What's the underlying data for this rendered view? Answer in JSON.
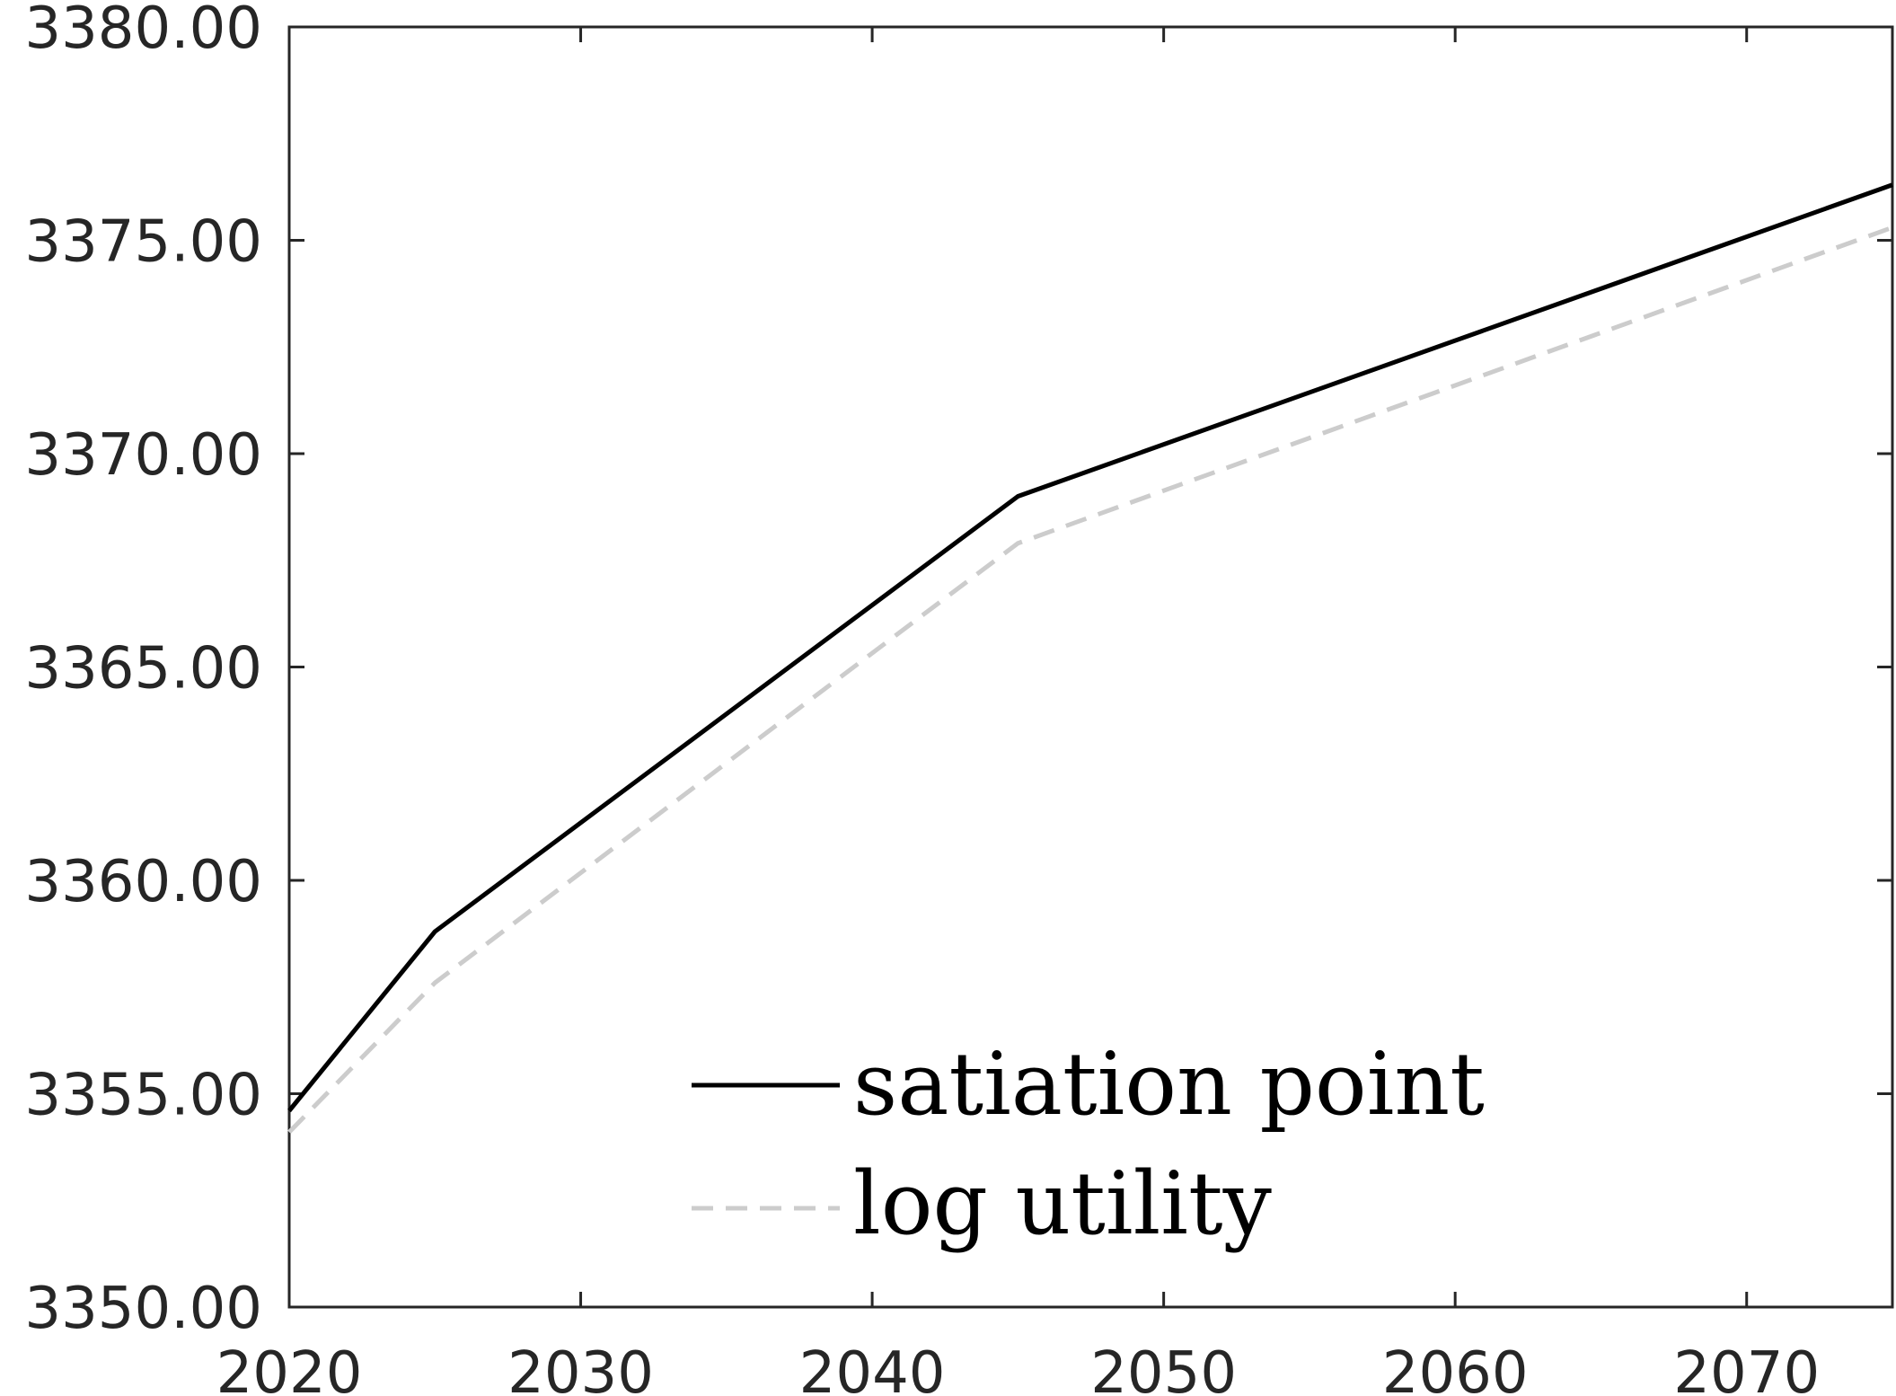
{
  "chart_data": {
    "type": "line",
    "x": [
      2020,
      2025,
      2045,
      2075
    ],
    "xlim": [
      2020,
      2075
    ],
    "ylim": [
      3350,
      3380
    ],
    "xticks": [
      "2020",
      "2030",
      "2040",
      "2050",
      "2060",
      "2070"
    ],
    "yticks": [
      "3350.00",
      "3355.00",
      "3360.00",
      "3365.00",
      "3370.00",
      "3375.00",
      "3380.00"
    ],
    "grid": false,
    "legend_position": "bottom-center",
    "series": [
      {
        "name": "satiation point",
        "values": [
          3354.6,
          3358.8,
          3369.0,
          3376.3
        ],
        "color": "#000000",
        "dash": "solid"
      },
      {
        "name": "log utility",
        "values": [
          3354.1,
          3357.6,
          3367.9,
          3375.3
        ],
        "color": "#cccccc",
        "dash": "dashed"
      }
    ]
  }
}
